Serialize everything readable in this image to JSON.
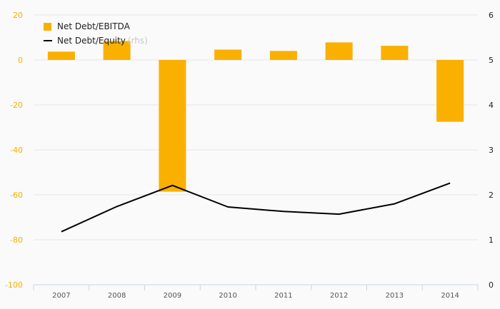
{
  "colors": {
    "bar": "#f9b000",
    "line": "#000000",
    "grid": "#e6e6e6",
    "axis": "#c9d4e8",
    "left_tick": "#f5b000",
    "right_tick": "#222222",
    "background": "#fafafa"
  },
  "legend": {
    "bar_label": "Net Debt/EBITDA",
    "line_label": "Net Debt/Equity",
    "line_suffix": "(rhs)"
  },
  "chart_data": {
    "type": "bar",
    "categories": [
      "2007",
      "2008",
      "2009",
      "2010",
      "2011",
      "2012",
      "2013",
      "2014"
    ],
    "series": [
      {
        "name": "Net Debt/EBITDA",
        "type": "bar",
        "axis": "left",
        "values": [
          3.7,
          8.4,
          -58.6,
          4.6,
          4.0,
          7.8,
          6.3,
          -27.5
        ]
      },
      {
        "name": "Net Debt/Equity",
        "type": "line",
        "axis": "right",
        "values": [
          1.18,
          1.74,
          2.21,
          1.73,
          1.63,
          1.57,
          1.8,
          2.26
        ]
      }
    ],
    "y_left": {
      "min": -100,
      "max": 20,
      "ticks": [
        20,
        0,
        -20,
        -40,
        -60,
        -80,
        -100
      ]
    },
    "y_right": {
      "min": 0,
      "max": 6,
      "ticks": [
        6,
        5,
        4,
        3,
        2,
        1,
        0
      ]
    },
    "grid": true,
    "legend_position": "top-left"
  }
}
